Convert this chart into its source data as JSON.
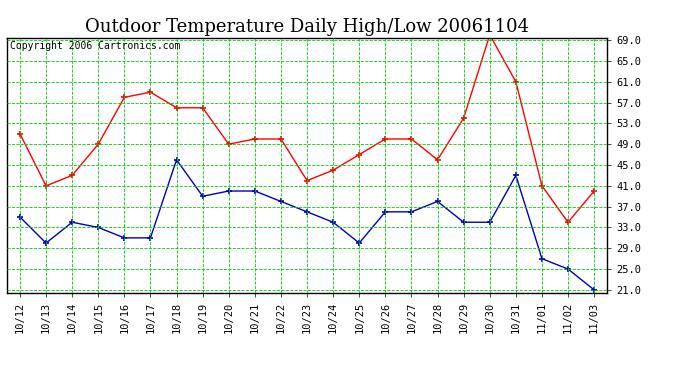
{
  "title": "Outdoor Temperature Daily High/Low 20061104",
  "copyright": "Copyright 2006 Cartronics.com",
  "x_labels": [
    "10/12",
    "10/13",
    "10/14",
    "10/15",
    "10/16",
    "10/17",
    "10/18",
    "10/19",
    "10/20",
    "10/21",
    "10/22",
    "10/23",
    "10/24",
    "10/25",
    "10/26",
    "10/27",
    "10/28",
    "10/29",
    "10/30",
    "10/31",
    "11/01",
    "11/02",
    "11/03"
  ],
  "high_temps": [
    51,
    41,
    43,
    49,
    58,
    59,
    56,
    56,
    49,
    50,
    50,
    42,
    44,
    47,
    50,
    50,
    46,
    54,
    70,
    61,
    41,
    34,
    40
  ],
  "low_temps": [
    35,
    30,
    34,
    33,
    31,
    31,
    46,
    39,
    40,
    40,
    38,
    36,
    34,
    30,
    36,
    36,
    38,
    34,
    34,
    43,
    27,
    25,
    21
  ],
  "high_color": "#ff0000",
  "low_color": "#0000bb",
  "bg_color": "#ffffff",
  "plot_bg_color": "#ffffff",
  "grid_color": "#00cc00",
  "y_min": 21.0,
  "y_max": 69.0,
  "y_ticks": [
    21.0,
    25.0,
    29.0,
    33.0,
    37.0,
    41.0,
    45.0,
    49.0,
    53.0,
    57.0,
    61.0,
    65.0,
    69.0
  ],
  "title_fontsize": 13,
  "copyright_fontsize": 7,
  "tick_fontsize": 7.5
}
